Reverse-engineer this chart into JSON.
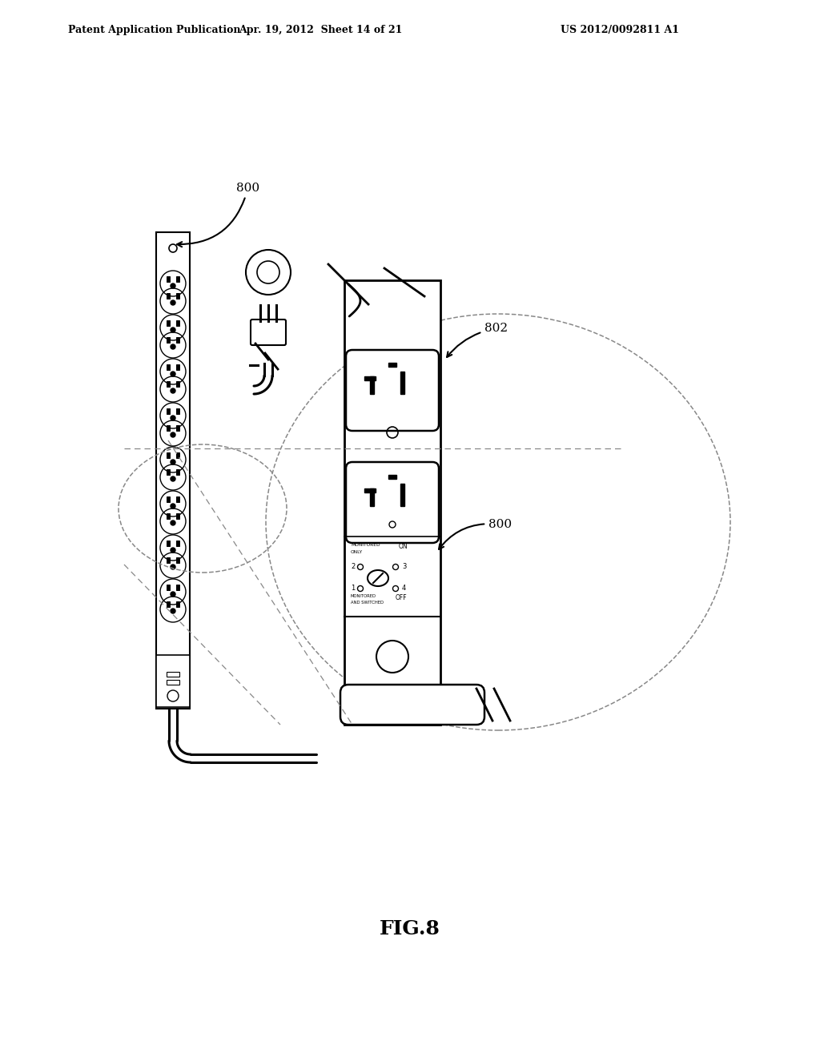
{
  "bg_color": "#ffffff",
  "text_color": "#000000",
  "header_left": "Patent Application Publication",
  "header_center": "Apr. 19, 2012  Sheet 14 of 21",
  "header_right": "US 2012/0092811 A1",
  "figure_label": "FIG.8",
  "label_800_top": "800",
  "label_800_bottom": "800",
  "label_802": "802",
  "line_color": "#000000",
  "dashed_color": "#888888"
}
